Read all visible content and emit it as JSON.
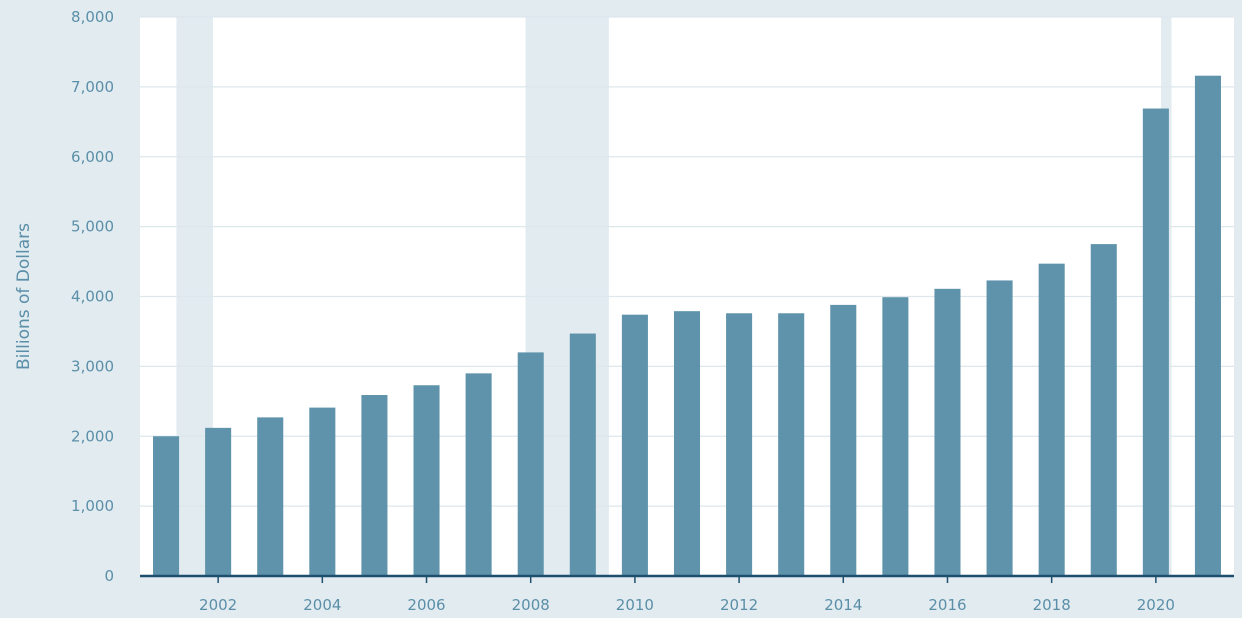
{
  "chart_data": {
    "type": "bar",
    "title": "",
    "xlabel": "",
    "ylabel": "Billions of Dollars",
    "ylim": [
      0,
      8000
    ],
    "yticks": [
      0,
      1000,
      2000,
      3000,
      4000,
      5000,
      6000,
      7000,
      8000
    ],
    "ytick_labels": [
      "0",
      "1,000",
      "2,000",
      "3,000",
      "4,000",
      "5,000",
      "6,000",
      "7,000",
      "8,000"
    ],
    "xticks": [
      2002,
      2004,
      2006,
      2008,
      2010,
      2012,
      2014,
      2016,
      2018,
      2020
    ],
    "xtick_labels": [
      "2002",
      "2004",
      "2006",
      "2008",
      "2010",
      "2012",
      "2014",
      "2016",
      "2018",
      "2020"
    ],
    "categories": [
      2001,
      2002,
      2003,
      2004,
      2005,
      2006,
      2007,
      2008,
      2009,
      2010,
      2011,
      2012,
      2013,
      2014,
      2015,
      2016,
      2017,
      2018,
      2019,
      2020,
      2021
    ],
    "values": [
      2000,
      2120,
      2270,
      2410,
      2590,
      2730,
      2900,
      3200,
      3470,
      3740,
      3790,
      3760,
      3760,
      3880,
      3990,
      4110,
      4230,
      4470,
      4750,
      6690,
      7160
    ],
    "recessions": [
      [
        2001.2,
        2001.9
      ],
      [
        2007.9,
        2009.5
      ],
      [
        2020.1,
        2020.3
      ]
    ],
    "grid": true,
    "colors": {
      "bar": "#5f93ab",
      "plot_background": "#ffffff",
      "page_background": "#e1ebf0",
      "recession_shade": "#e1ebf0",
      "gridline": "#dde7ec",
      "baseline": "#1f4f6e",
      "text": "#5b8fa8"
    }
  }
}
